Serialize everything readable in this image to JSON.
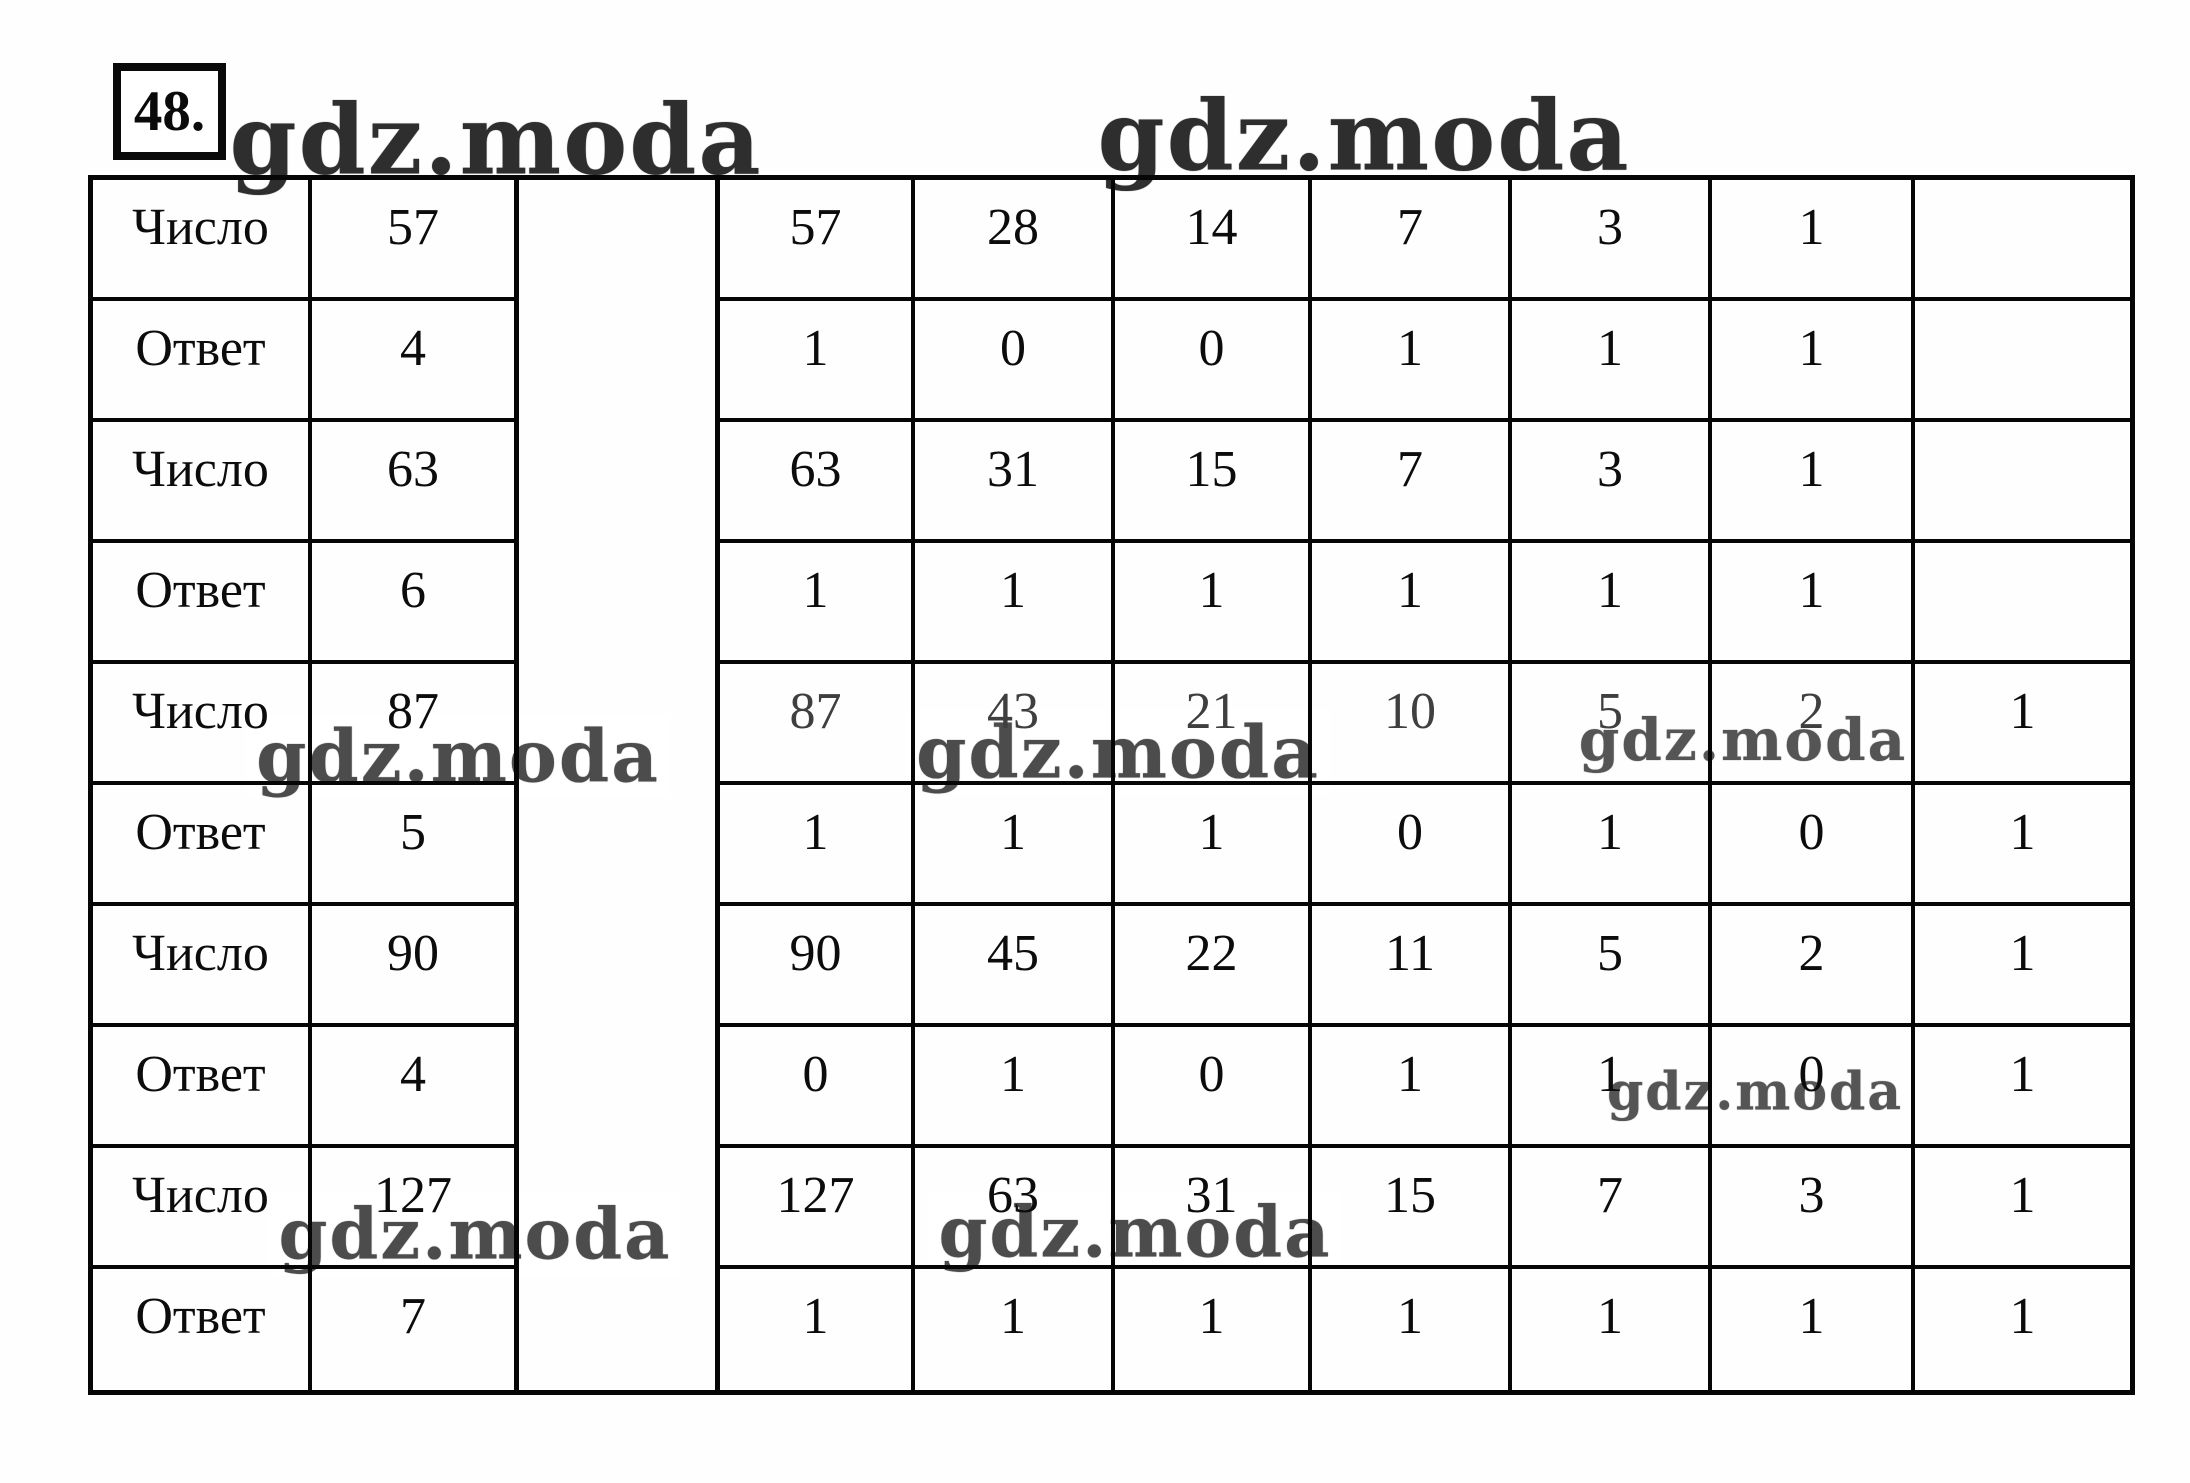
{
  "page": {
    "task_number": "48."
  },
  "watermarks": {
    "text": "gdz.moda"
  },
  "left_table": {
    "rows": [
      {
        "label": "Число",
        "value": "57"
      },
      {
        "label": "Ответ",
        "value": "4"
      },
      {
        "label": "Число",
        "value": "63"
      },
      {
        "label": "Ответ",
        "value": "6"
      },
      {
        "label": "Число",
        "value": "87"
      },
      {
        "label": "Ответ",
        "value": "5"
      },
      {
        "label": "Число",
        "value": "90"
      },
      {
        "label": "Ответ",
        "value": "4"
      },
      {
        "label": "Число",
        "value": "127"
      },
      {
        "label": "Ответ",
        "value": "7"
      }
    ]
  },
  "right_table": {
    "rows": [
      {
        "cells": [
          "57",
          "28",
          "14",
          "7",
          "3",
          "1",
          ""
        ]
      },
      {
        "cells": [
          "1",
          "0",
          "0",
          "1",
          "1",
          "1",
          ""
        ]
      },
      {
        "cells": [
          "63",
          "31",
          "15",
          "7",
          "3",
          "1",
          ""
        ]
      },
      {
        "cells": [
          "1",
          "1",
          "1",
          "1",
          "1",
          "1",
          ""
        ]
      },
      {
        "cells": [
          "87",
          "43",
          "21",
          "10",
          "5",
          "2",
          "1"
        ]
      },
      {
        "cells": [
          "1",
          "1",
          "1",
          "0",
          "1",
          "0",
          "1"
        ]
      },
      {
        "cells": [
          "90",
          "45",
          "22",
          "11",
          "5",
          "2",
          "1"
        ]
      },
      {
        "cells": [
          "0",
          "1",
          "0",
          "1",
          "1",
          "0",
          "1"
        ]
      },
      {
        "cells": [
          "127",
          "63",
          "31",
          "15",
          "7",
          "3",
          "1"
        ]
      },
      {
        "cells": [
          "1",
          "1",
          "1",
          "1",
          "1",
          "1",
          "1"
        ]
      }
    ]
  }
}
